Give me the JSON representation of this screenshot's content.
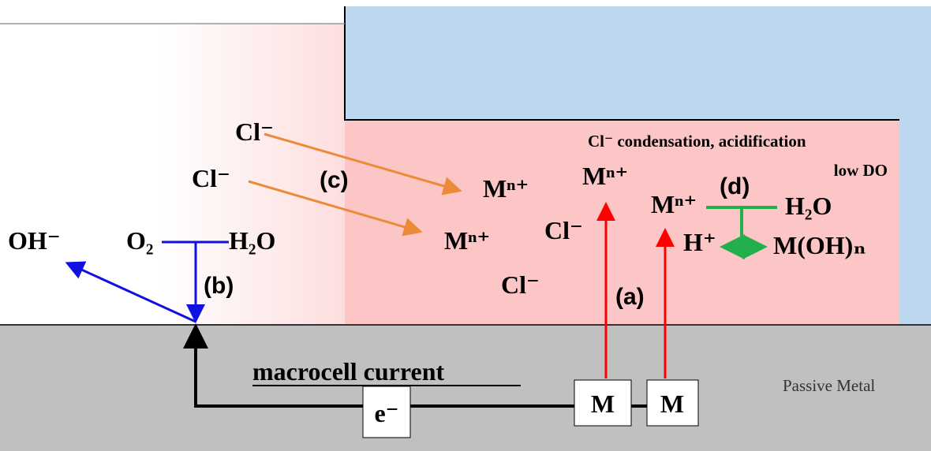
{
  "labels": {
    "cl_1": "Cl⁻",
    "cl_2": "Cl⁻",
    "cl_3": "Cl⁻",
    "cl_4": "Cl⁻",
    "step_a": "(a)",
    "step_b": "(b)",
    "step_c": "(c)",
    "step_d": "(d)",
    "oh": "OH⁻",
    "o2": "O₂",
    "h2o_left": "H₂O",
    "m_ion_1": "Mⁿ⁺",
    "m_ion_2": "Mⁿ⁺",
    "m_ion_3": "Mⁿ⁺",
    "m_ion_4": "Mⁿ⁺",
    "h2o_right": "H₂O",
    "h_plus": "H⁺",
    "hydroxide": "M(OH)ₙ",
    "condensation": "Cl⁻ condensation, acidification",
    "low_do": "low DO",
    "passive_metal": "Passive Metal",
    "macrocell": "macrocell current",
    "electron": "e⁻",
    "metal_1": "M",
    "metal_2": "M"
  }
}
